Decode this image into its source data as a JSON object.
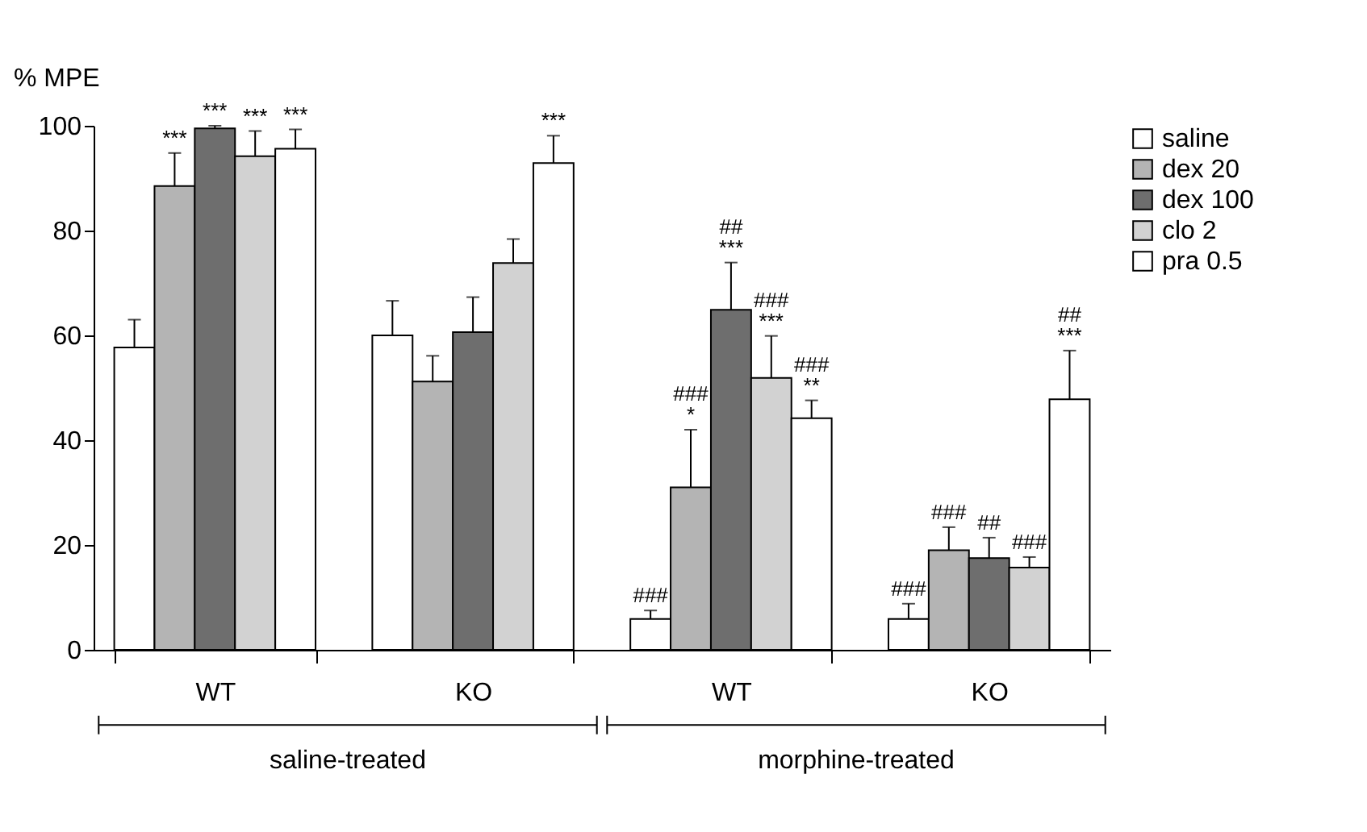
{
  "chart_data": {
    "type": "bar",
    "ylabel": "% MPE",
    "categories": [
      "WT",
      "KO",
      "WT",
      "KO"
    ],
    "annotations": [
      "saline-treated",
      "morphine-treated"
    ],
    "ylim": [
      0,
      100
    ],
    "yticks": [
      0,
      20,
      40,
      60,
      80,
      100
    ],
    "grid": false,
    "legend": "right",
    "series": [
      {
        "name": "saline",
        "color": "#ffffff",
        "values": [
          57.7,
          60.0,
          5.9,
          5.9
        ],
        "errors": [
          [
            57.7,
            63.0
          ],
          [
            60.0,
            66.6
          ],
          [
            5.9,
            7.5
          ],
          [
            5.9,
            8.8
          ]
        ],
        "value_labels": [
          null,
          null,
          "###",
          "###"
        ]
      },
      {
        "name": "dex 20",
        "color": "#b4b4b4",
        "values": [
          88.5,
          51.2,
          31.0,
          19.0
        ],
        "errors": [
          [
            88.5,
            94.8
          ],
          [
            51.2,
            56.1
          ],
          [
            31.0,
            42.0
          ],
          [
            19.0,
            23.4
          ]
        ],
        "value_labels": [
          "***",
          null,
          "###\n*",
          "###"
        ]
      },
      {
        "name": "dex 100",
        "color": "#6e6e6e",
        "values": [
          99.5,
          60.6,
          64.9,
          17.5
        ],
        "errors": [
          [
            99.5,
            100
          ],
          [
            60.6,
            67.3
          ],
          [
            64.9,
            73.9
          ],
          [
            17.5,
            21.4
          ]
        ],
        "value_labels": [
          "***",
          null,
          "##\n***",
          "##"
        ]
      },
      {
        "name": "clo 2",
        "color": "#d2d2d2",
        "values": [
          94.2,
          73.8,
          51.9,
          15.7
        ],
        "errors": [
          [
            94.2,
            99.0
          ],
          [
            73.8,
            78.4
          ],
          [
            51.9,
            59.9
          ],
          [
            15.7,
            17.7
          ]
        ],
        "value_labels": [
          "***",
          null,
          "###\n***",
          "###"
        ]
      },
      {
        "name": "pra 0.5",
        "color": "#ffffff",
        "values": [
          95.6,
          92.9,
          44.2,
          47.8
        ],
        "errors": [
          [
            95.6,
            99.3
          ],
          [
            92.9,
            98.1
          ],
          [
            44.2,
            47.6
          ],
          [
            47.8,
            57.1
          ]
        ],
        "value_labels": [
          "***",
          "***",
          "###\n**",
          "##\n***"
        ]
      }
    ]
  }
}
